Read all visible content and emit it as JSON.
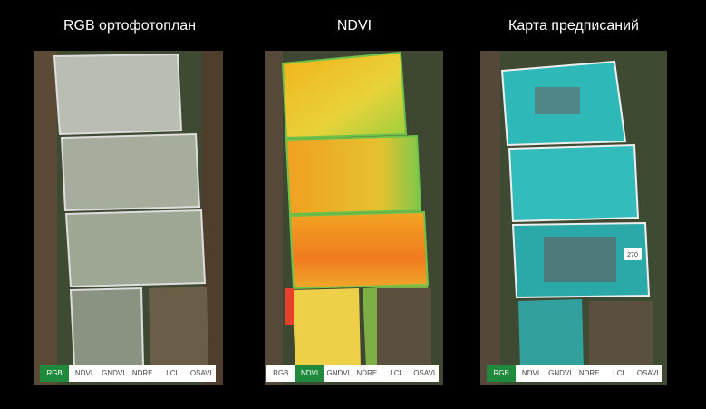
{
  "panels": [
    {
      "title": "RGB ортофотоплан",
      "tabs": [
        "RGB",
        "NDVI",
        "GNDVI",
        "NDRE",
        "LCI",
        "OSAVI"
      ],
      "active_tab": 0
    },
    {
      "title": "NDVI",
      "tabs": [
        "RGB",
        "NDVI",
        "GNDVI",
        "NDRE",
        "LCI",
        "OSAVI"
      ],
      "active_tab": 1
    },
    {
      "title": "Карта предписаний",
      "tabs": [
        "RGB",
        "NDVI",
        "GNDVI",
        "NDRE",
        "LCI",
        "OSAVI"
      ],
      "active_tab": 0,
      "marker": "270"
    }
  ]
}
